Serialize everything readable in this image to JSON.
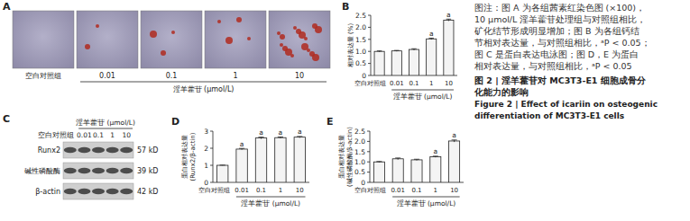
{
  "chart_data": [
    {
      "type": "bar",
      "letter": "B",
      "y_label": [
        "相对表达量 (%)"
      ],
      "categories": [
        "空白对照组",
        "0.01",
        "0.1",
        "1",
        "10"
      ],
      "x_group_label": "淫羊藿苷 (μmol/L)",
      "values": [
        1.0,
        1.02,
        1.08,
        1.52,
        2.3
      ],
      "errors": [
        0.02,
        0.02,
        0.03,
        0.03,
        0.04
      ],
      "annotations": [
        null,
        null,
        null,
        "a",
        "a"
      ],
      "color": "#f4f4f4",
      "ylim": [
        0,
        2.5
      ],
      "yticks": [
        0,
        0.5,
        {
          "value": 1,
          "label": "1.0"
        },
        1.5,
        {
          "value": 2,
          "label": "2.0"
        },
        2.5
      ]
    },
    {
      "type": "bar",
      "letter": "D",
      "y_label": [
        "蛋白相对表达量",
        "(Runx2/β-actin)"
      ],
      "categories": [
        "空白对照组",
        "0.01",
        "0.1",
        "1",
        "10"
      ],
      "x_group_label": "淫羊藿苷 (μmol/L)",
      "values": [
        1.0,
        1.95,
        2.6,
        2.62,
        2.65
      ],
      "errors": [
        0.01,
        0.04,
        0.05,
        0.04,
        0.04
      ],
      "annotations": [
        null,
        "a",
        "a",
        "a",
        "a"
      ],
      "color": "#f4f4f4",
      "ylim": [
        0,
        3
      ],
      "yticks": [
        0,
        1,
        2,
        3
      ]
    },
    {
      "type": "bar",
      "letter": "E",
      "y_label": [
        "蛋白相对表达量",
        "(碱性磷酸酶/β-actin)"
      ],
      "categories": [
        "空白对照组",
        "0.01",
        "0.1",
        "1",
        "10"
      ],
      "x_group_label": "淫羊藿苷 (μmol/L)",
      "values": [
        1.0,
        1.15,
        1.1,
        1.25,
        2.02
      ],
      "errors": [
        0.02,
        0.04,
        0.03,
        0.03,
        0.05
      ],
      "annotations": [
        null,
        null,
        null,
        "a",
        "a"
      ],
      "color": "#f4f4f4",
      "ylim": [
        0,
        2.5
      ],
      "yticks": [
        0,
        0.5,
        {
          "value": 1,
          "label": "1.0"
        },
        1.5,
        {
          "value": 2,
          "label": "2.0"
        },
        2.5
      ]
    }
  ],
  "panel_a": {
    "letter": "A",
    "labels": [
      "空白对照组",
      "0.01",
      "0.1",
      "1",
      "10"
    ],
    "group_label": "淫羊藿苷 (μmol/L)"
  },
  "panel_c": {
    "letter": "C",
    "columns": [
      "空白对照组",
      "0.01",
      "0.1",
      "1",
      "10"
    ],
    "group_label": "淫羊藿苷 (μmol/L)",
    "rows": [
      {
        "name": "Runx2",
        "size": "57 kD"
      },
      {
        "name": "碱性磷酸酶",
        "size": "39 kD"
      },
      {
        "name": "β-actin",
        "size": "42 kD"
      }
    ]
  },
  "caption": {
    "note_lines": [
      "图注：图 A 为各组茜素红染色图 (×100)，",
      "10 μmol/L 淫羊藿苷处理组与对照组相比，",
      "矿化结节形成明显增加；图 B 为各组钙结",
      "节相对表达量，与对照组相比，ᵃP < 0.05；",
      "图 C 是蛋白表达电泳图；图 D，E 为蛋白",
      "相对表达量，与对照组相比，ᵃP < 0.05"
    ],
    "title_lines": [
      "图 2 | 淫羊藿苷对 MC3T3-E1 细胞成骨分",
      "化能力的影响"
    ],
    "english_lines": [
      "Figure 2 | Effect of icariin on osteogenic",
      "differentiation of MC3T3-E1 cells"
    ]
  }
}
